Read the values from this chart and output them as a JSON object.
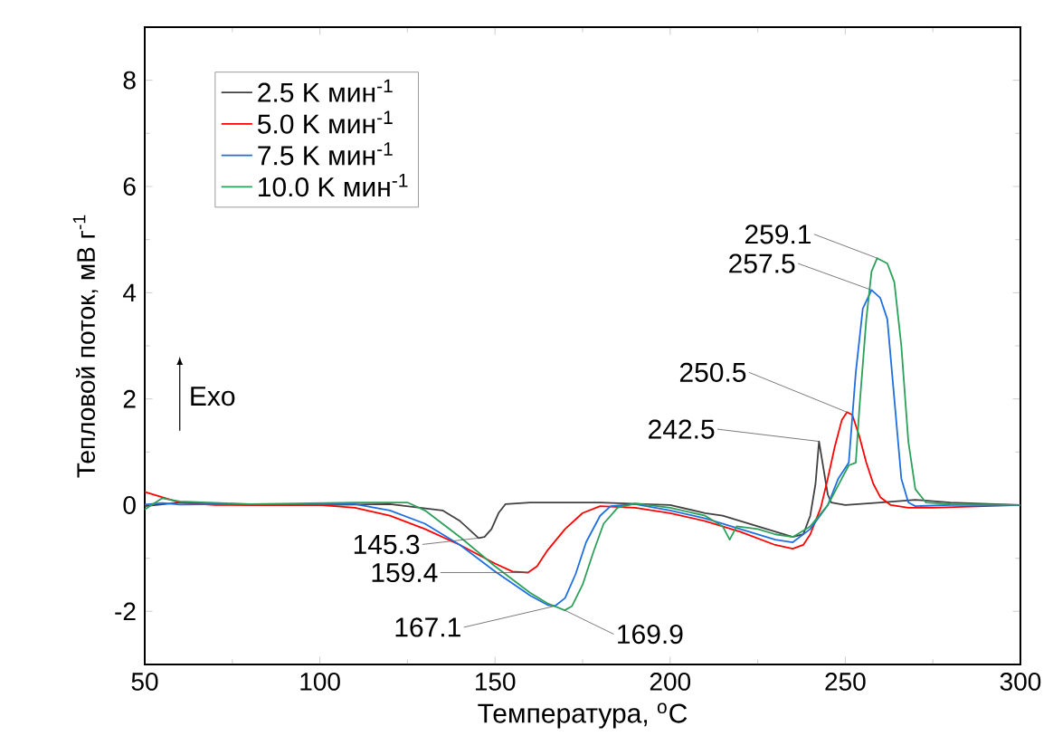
{
  "chart_data": {
    "type": "line",
    "xlabel": "Температура, $^{o}$C",
    "ylabel": "Тепловой поток, мВ г$^{-1}$",
    "xlim": [
      50,
      300
    ],
    "ylim": [
      -3,
      9
    ],
    "xticks": [
      50,
      100,
      150,
      200,
      250,
      300
    ],
    "yticks": [
      -2,
      0,
      2,
      4,
      6,
      8
    ],
    "legend": "top left",
    "grid": false,
    "marker": "none",
    "line_style": "solid",
    "annotations": [
      "Exo",
      {
        "text": "145.3",
        "x": 145.3,
        "y": -0.62
      },
      {
        "text": "159.4",
        "x": 159.4,
        "y": -1.27
      },
      {
        "text": "167.1",
        "x": 167.1,
        "y": -1.9
      },
      {
        "text": "169.9",
        "x": 169.9,
        "y": -1.98
      },
      {
        "text": "242.5",
        "x": 242.5,
        "y": 1.2
      },
      {
        "text": "250.5",
        "x": 250.5,
        "y": 1.75
      },
      {
        "text": "257.5",
        "x": 257.5,
        "y": 4.05
      },
      {
        "text": "259.1",
        "x": 259.1,
        "y": 4.65
      }
    ],
    "series": [
      {
        "name": "2.5 K мин$^{-1}$",
        "color": "#404040",
        "x": [
          50,
          60,
          80,
          100,
          120,
          135,
          140,
          145.3,
          147,
          149,
          151,
          153,
          160,
          180,
          200,
          210,
          215,
          220,
          225,
          230,
          235,
          238,
          240,
          241.5,
          242.5,
          243.5,
          245,
          246,
          250,
          260,
          270,
          280,
          300
        ],
        "values": [
          -0.02,
          0.05,
          0,
          0,
          0.02,
          -0.1,
          -0.3,
          -0.62,
          -0.6,
          -0.45,
          -0.15,
          0.02,
          0.05,
          0.05,
          0,
          -0.15,
          -0.2,
          -0.3,
          -0.4,
          -0.5,
          -0.6,
          -0.55,
          -0.2,
          0.4,
          1.2,
          0.8,
          0.2,
          0.05,
          0,
          0.05,
          0.1,
          0.05,
          0
        ]
      },
      {
        "name": "5.0 K мин$^{-1}$",
        "color": "#ff0000",
        "x": [
          50,
          55,
          60,
          70,
          80,
          100,
          110,
          120,
          130,
          140,
          150,
          155,
          159.4,
          162,
          165,
          170,
          175,
          180,
          190,
          200,
          210,
          220,
          230,
          235,
          238,
          240,
          243,
          245,
          247,
          249,
          250.5,
          252,
          254,
          256,
          258,
          260,
          263,
          268,
          275,
          300
        ],
        "values": [
          0.25,
          0.15,
          0.05,
          0,
          0,
          0,
          -0.05,
          -0.2,
          -0.45,
          -0.75,
          -1.1,
          -1.25,
          -1.27,
          -1.15,
          -0.85,
          -0.45,
          -0.15,
          -0.02,
          -0.05,
          -0.15,
          -0.3,
          -0.5,
          -0.75,
          -0.82,
          -0.75,
          -0.55,
          -0.05,
          0.5,
          1.1,
          1.6,
          1.75,
          1.7,
          1.3,
          0.8,
          0.4,
          0.15,
          0,
          -0.05,
          -0.05,
          0
        ]
      },
      {
        "name": "7.5 K мин$^{-1}$",
        "color": "#1f6fe0",
        "x": [
          50,
          55,
          60,
          80,
          100,
          110,
          120,
          130,
          140,
          150,
          160,
          165,
          167.1,
          170,
          173,
          176,
          180,
          183,
          190,
          200,
          210,
          220,
          230,
          235,
          240,
          245,
          248,
          251,
          253,
          255,
          257.5,
          260,
          262,
          264,
          266,
          268,
          270,
          280,
          300
        ],
        "values": [
          0.01,
          0.04,
          0.01,
          0.02,
          0.02,
          0.02,
          -0.1,
          -0.35,
          -0.75,
          -1.25,
          -1.7,
          -1.88,
          -1.9,
          -1.75,
          -1.3,
          -0.7,
          -0.2,
          -0.02,
          0.02,
          -0.1,
          -0.25,
          -0.45,
          -0.65,
          -0.7,
          -0.45,
          0,
          0.5,
          0.8,
          2.5,
          3.7,
          4.05,
          3.9,
          3.5,
          2,
          0.5,
          0.05,
          -0.02,
          0,
          0
        ]
      },
      {
        "name": "10.0 K мин$^{-1}$",
        "color": "#2ca05a",
        "x": [
          50,
          55,
          60,
          80,
          110,
          125,
          130,
          140,
          150,
          160,
          165,
          169.9,
          172,
          175,
          178,
          181,
          185,
          190,
          200,
          210,
          215,
          217,
          219,
          225,
          230,
          235,
          240,
          245,
          249,
          251,
          253,
          254,
          256,
          257.5,
          259.1,
          262,
          264,
          266,
          268,
          270,
          273,
          280,
          300
        ],
        "values": [
          -0.08,
          0.13,
          0.07,
          0.02,
          0.05,
          0.05,
          -0.1,
          -0.6,
          -1.15,
          -1.65,
          -1.85,
          -1.98,
          -1.9,
          -1.5,
          -0.9,
          -0.35,
          -0.05,
          0.03,
          -0.05,
          -0.2,
          -0.4,
          -0.65,
          -0.4,
          -0.45,
          -0.55,
          -0.6,
          -0.4,
          0,
          0.5,
          0.75,
          0.8,
          1.8,
          3.5,
          4.4,
          4.65,
          4.55,
          4.2,
          3,
          1.2,
          0.3,
          0.05,
          0.02,
          0
        ]
      }
    ]
  }
}
